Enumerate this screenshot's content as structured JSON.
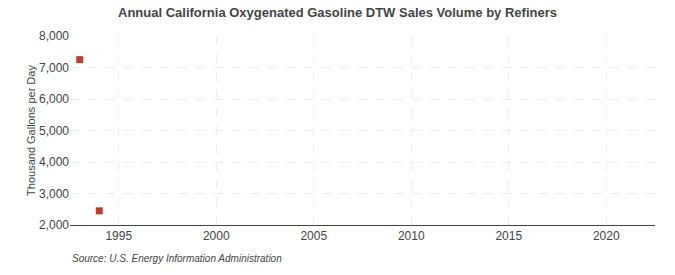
{
  "chart_data": {
    "type": "scatter",
    "title": "Annual California Oxygenated Gasoline DTW Sales Volume by Refiners",
    "y_label": "Thousand Gallons per Day",
    "annotations": [
      "Source: U.S. Energy Information Administration"
    ],
    "x": [
      1993,
      1994
    ],
    "values": [
      7250,
      2450
    ],
    "color": "#c0392b",
    "marker": "square",
    "xlim": [
      1992.5,
      2022.5
    ],
    "ylim": [
      2000,
      8000
    ],
    "xticks": [
      1995,
      2000,
      2005,
      2010,
      2015,
      2020
    ],
    "yticks": [
      {
        "value": 2000,
        "label": "2,000"
      },
      {
        "value": 3000,
        "label": "3,000"
      },
      {
        "value": 4000,
        "label": "4,000"
      },
      {
        "value": 5000,
        "label": "5,000"
      },
      {
        "value": 6000,
        "label": "6,000"
      },
      {
        "value": 7000,
        "label": "7,000"
      },
      {
        "value": 8000,
        "label": "8,000"
      }
    ],
    "grid": true
  }
}
